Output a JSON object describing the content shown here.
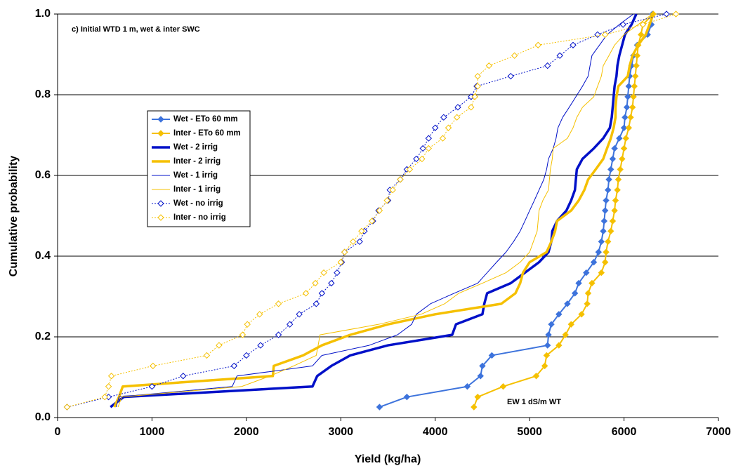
{
  "chart_data": {
    "type": "line",
    "x_label": "Yield (kg/ha)",
    "y_label": "Cumulative probability",
    "annotations": [
      "c) Initial WTD 1 m, wet & inter SWC",
      "EW 1 dS/m WT"
    ],
    "xlim": [
      0,
      7000
    ],
    "xticks": [
      0,
      1000,
      2000,
      3000,
      4000,
      5000,
      6000,
      7000
    ],
    "ylim": [
      0,
      1
    ],
    "yticks": [
      {
        "value": 0,
        "label": "0.0"
      },
      {
        "value": 0.2,
        "label": "0.2"
      },
      {
        "value": 0.4,
        "label": "0.4"
      },
      {
        "value": 0.6,
        "label": "0.6"
      },
      {
        "value": 0.8,
        "label": "0.8"
      },
      {
        "value": 1,
        "label": "1.0"
      }
    ],
    "grid": true,
    "series": [
      {
        "name": "Wet - ETo 60 mm",
        "color": "#3d73dc",
        "line_width": 2,
        "dash": "solid",
        "marker": "diamond",
        "x": [
          3410,
          3700,
          4340,
          4480,
          4500,
          4600,
          5190,
          5200,
          5230,
          5310,
          5400,
          5480,
          5520,
          5600,
          5680,
          5730,
          5760,
          5780,
          5790,
          5800,
          5810,
          5830,
          5840,
          5860,
          5880,
          5900,
          5950,
          6000,
          6010,
          6030,
          6040,
          6050,
          6060,
          6080,
          6100,
          6140,
          6250,
          6290,
          6300
        ],
        "values": [
          0.026,
          0.051,
          0.077,
          0.103,
          0.128,
          0.154,
          0.179,
          0.205,
          0.231,
          0.256,
          0.282,
          0.308,
          0.333,
          0.359,
          0.385,
          0.41,
          0.436,
          0.462,
          0.487,
          0.513,
          0.538,
          0.564,
          0.59,
          0.615,
          0.641,
          0.667,
          0.692,
          0.718,
          0.744,
          0.769,
          0.795,
          0.821,
          0.846,
          0.872,
          0.897,
          0.923,
          0.949,
          0.974,
          1.0
        ]
      },
      {
        "name": "Inter - ETo 60 mm",
        "color": "#f5c000",
        "line_width": 2,
        "dash": "solid",
        "marker": "diamond",
        "x": [
          4410,
          4450,
          4720,
          5070,
          5160,
          5180,
          5310,
          5380,
          5440,
          5550,
          5610,
          5620,
          5660,
          5760,
          5800,
          5810,
          5830,
          5860,
          5880,
          5900,
          5910,
          5930,
          5940,
          5960,
          5980,
          6000,
          6020,
          6050,
          6070,
          6090,
          6100,
          6110,
          6120,
          6130,
          6140,
          6150,
          6180,
          6200,
          6310
        ],
        "values": [
          0.026,
          0.051,
          0.077,
          0.103,
          0.128,
          0.154,
          0.179,
          0.205,
          0.231,
          0.256,
          0.282,
          0.308,
          0.333,
          0.359,
          0.385,
          0.41,
          0.436,
          0.462,
          0.487,
          0.513,
          0.538,
          0.564,
          0.59,
          0.615,
          0.641,
          0.667,
          0.692,
          0.718,
          0.744,
          0.769,
          0.795,
          0.821,
          0.846,
          0.872,
          0.897,
          0.923,
          0.949,
          0.974,
          1.0
        ]
      },
      {
        "name": "Wet - 2 irrig",
        "color": "#0010c8",
        "line_width": 3.5,
        "dash": "solid",
        "marker": "none",
        "x": [
          560,
          700,
          2700,
          2750,
          2900,
          3100,
          3500,
          4180,
          4220,
          4500,
          4520,
          4550,
          4800,
          4950,
          5100,
          5200,
          5230,
          5240,
          5290,
          5390,
          5440,
          5480,
          5490,
          5500,
          5560,
          5680,
          5780,
          5850,
          5870,
          5880,
          5890,
          5900,
          5920,
          5930,
          5950,
          5980,
          6010,
          6080,
          6130
        ],
        "values": [
          0.026,
          0.051,
          0.077,
          0.103,
          0.128,
          0.154,
          0.179,
          0.205,
          0.231,
          0.256,
          0.282,
          0.308,
          0.333,
          0.359,
          0.385,
          0.41,
          0.436,
          0.462,
          0.487,
          0.513,
          0.538,
          0.564,
          0.59,
          0.615,
          0.641,
          0.667,
          0.692,
          0.718,
          0.744,
          0.769,
          0.795,
          0.821,
          0.846,
          0.872,
          0.897,
          0.923,
          0.949,
          0.974,
          1.0
        ]
      },
      {
        "name": "Inter - 2 irrig",
        "color": "#f5c000",
        "line_width": 3.5,
        "dash": "solid",
        "marker": "none",
        "x": [
          600,
          650,
          690,
          2280,
          2290,
          2600,
          2800,
          3100,
          3500,
          4000,
          4700,
          4850,
          4900,
          4930,
          5000,
          5180,
          5230,
          5270,
          5290,
          5440,
          5520,
          5580,
          5620,
          5700,
          5780,
          5820,
          5860,
          5890,
          5910,
          5910,
          5920,
          5940,
          6040,
          6060,
          6090,
          6150,
          6230,
          6270,
          6310
        ],
        "values": [
          0.026,
          0.051,
          0.077,
          0.103,
          0.128,
          0.154,
          0.179,
          0.205,
          0.231,
          0.256,
          0.282,
          0.308,
          0.333,
          0.359,
          0.385,
          0.41,
          0.436,
          0.462,
          0.487,
          0.513,
          0.538,
          0.564,
          0.59,
          0.615,
          0.641,
          0.667,
          0.692,
          0.718,
          0.744,
          0.769,
          0.795,
          0.821,
          0.846,
          0.872,
          0.897,
          0.923,
          0.949,
          0.974,
          1.0
        ]
      },
      {
        "name": "Wet - 1 irrig",
        "color": "#0010c8",
        "line_width": 1,
        "dash": "solid",
        "marker": "none",
        "x": [
          620,
          650,
          1850,
          1900,
          2700,
          2800,
          3300,
          3600,
          3750,
          3800,
          3950,
          4200,
          4450,
          4550,
          4650,
          4750,
          4830,
          4900,
          4950,
          5000,
          5050,
          5100,
          5150,
          5180,
          5200,
          5250,
          5280,
          5300,
          5350,
          5420,
          5490,
          5560,
          5620,
          5640,
          5660,
          5740,
          5820,
          5950,
          6100
        ],
        "values": [
          0.026,
          0.051,
          0.077,
          0.103,
          0.128,
          0.154,
          0.179,
          0.205,
          0.231,
          0.256,
          0.282,
          0.308,
          0.333,
          0.359,
          0.385,
          0.41,
          0.436,
          0.462,
          0.487,
          0.513,
          0.538,
          0.564,
          0.59,
          0.615,
          0.641,
          0.667,
          0.692,
          0.718,
          0.744,
          0.769,
          0.795,
          0.821,
          0.846,
          0.872,
          0.897,
          0.923,
          0.949,
          0.974,
          1.0
        ]
      },
      {
        "name": "Inter - 1 irrig",
        "color": "#f5c000",
        "line_width": 1,
        "dash": "solid",
        "marker": "none",
        "x": [
          640,
          680,
          1950,
          2250,
          2500,
          2740,
          2760,
          2780,
          3400,
          3850,
          4100,
          4250,
          4500,
          4750,
          4900,
          5000,
          5040,
          5080,
          5090,
          5100,
          5140,
          5200,
          5210,
          5220,
          5240,
          5250,
          5400,
          5460,
          5500,
          5560,
          5680,
          5720,
          5760,
          5780,
          5840,
          5900,
          6000,
          6150,
          6300
        ],
        "values": [
          0.026,
          0.051,
          0.077,
          0.103,
          0.128,
          0.154,
          0.179,
          0.205,
          0.231,
          0.256,
          0.282,
          0.308,
          0.333,
          0.359,
          0.385,
          0.41,
          0.436,
          0.462,
          0.487,
          0.513,
          0.538,
          0.564,
          0.59,
          0.615,
          0.641,
          0.667,
          0.692,
          0.718,
          0.744,
          0.769,
          0.795,
          0.821,
          0.846,
          0.872,
          0.897,
          0.923,
          0.949,
          0.974,
          1.0
        ]
      },
      {
        "name": "Wet - no irrig",
        "color": "#0010c8",
        "line_width": 1,
        "dash": "dotted",
        "marker": "open-diamond",
        "x": [
          100,
          540,
          1000,
          1330,
          1870,
          2000,
          2150,
          2340,
          2460,
          2560,
          2740,
          2800,
          2900,
          2960,
          3010,
          3040,
          3200,
          3250,
          3340,
          3400,
          3500,
          3520,
          3630,
          3700,
          3800,
          3870,
          3930,
          4000,
          4090,
          4240,
          4380,
          4440,
          4800,
          5190,
          5320,
          5460,
          5720,
          5990,
          6450
        ],
        "values": [
          0.026,
          0.051,
          0.077,
          0.103,
          0.128,
          0.154,
          0.179,
          0.205,
          0.231,
          0.256,
          0.282,
          0.308,
          0.333,
          0.359,
          0.385,
          0.41,
          0.436,
          0.462,
          0.487,
          0.513,
          0.538,
          0.564,
          0.59,
          0.615,
          0.641,
          0.667,
          0.692,
          0.718,
          0.744,
          0.769,
          0.795,
          0.821,
          0.846,
          0.872,
          0.897,
          0.923,
          0.949,
          0.974,
          1.0
        ]
      },
      {
        "name": "Inter - no irrig",
        "color": "#f5c000",
        "line_width": 1,
        "dash": "dotted",
        "marker": "open-diamond",
        "x": [
          100,
          500,
          540,
          570,
          1010,
          1580,
          1710,
          1960,
          2010,
          2140,
          2340,
          2630,
          2730,
          2820,
          3000,
          3040,
          3130,
          3220,
          3330,
          3410,
          3490,
          3550,
          3630,
          3730,
          3860,
          3930,
          4080,
          4140,
          4230,
          4380,
          4420,
          4450,
          4450,
          4570,
          4840,
          5090,
          5800,
          6200,
          6550
        ],
        "values": [
          0.026,
          0.051,
          0.077,
          0.103,
          0.128,
          0.154,
          0.179,
          0.205,
          0.231,
          0.256,
          0.282,
          0.308,
          0.333,
          0.359,
          0.385,
          0.41,
          0.436,
          0.462,
          0.487,
          0.513,
          0.538,
          0.564,
          0.59,
          0.615,
          0.641,
          0.667,
          0.692,
          0.718,
          0.744,
          0.769,
          0.795,
          0.821,
          0.846,
          0.872,
          0.897,
          0.923,
          0.949,
          0.974,
          1.0
        ]
      }
    ]
  }
}
